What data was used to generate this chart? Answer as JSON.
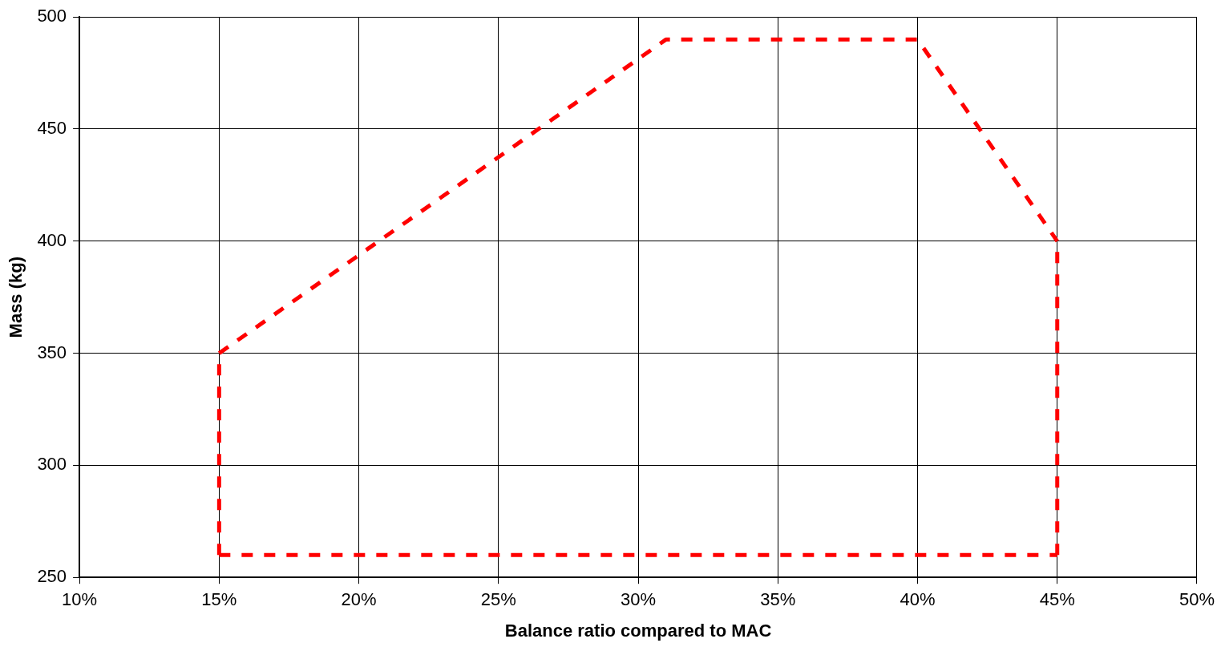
{
  "chart_data": {
    "type": "line",
    "xlabel": "Balance ratio compared to MAC",
    "ylabel": "Mass (kg)",
    "series": [
      {
        "color": "#ff0000",
        "x": [
          15,
          31,
          40,
          45
        ],
        "values": [
          350,
          490,
          490,
          400
        ]
      },
      {
        "color": "#ff0000",
        "x": [
          15,
          45
        ],
        "values": [
          260,
          260
        ]
      },
      {
        "color": "#ff0000",
        "x": [
          15,
          15
        ],
        "values": [
          260,
          350
        ]
      },
      {
        "color": "#ff0000",
        "x": [
          45,
          45
        ],
        "values": [
          260,
          400
        ]
      }
    ],
    "xlim": [
      10,
      50
    ],
    "xticks": [
      {
        "value": 10,
        "label": "10%"
      },
      {
        "value": 15,
        "label": "15%"
      },
      {
        "value": 20,
        "label": "20%"
      },
      {
        "value": 25,
        "label": "25%"
      },
      {
        "value": 30,
        "label": "30%"
      },
      {
        "value": 35,
        "label": "35%"
      },
      {
        "value": 40,
        "label": "40%"
      },
      {
        "value": 45,
        "label": "45%"
      },
      {
        "value": 50,
        "label": "50%"
      }
    ],
    "ylim": [
      250,
      500
    ],
    "yticks": [
      250,
      300,
      350,
      400,
      450,
      500
    ],
    "grid": true,
    "legend": false,
    "marker": "none",
    "line_style": "dashed"
  }
}
